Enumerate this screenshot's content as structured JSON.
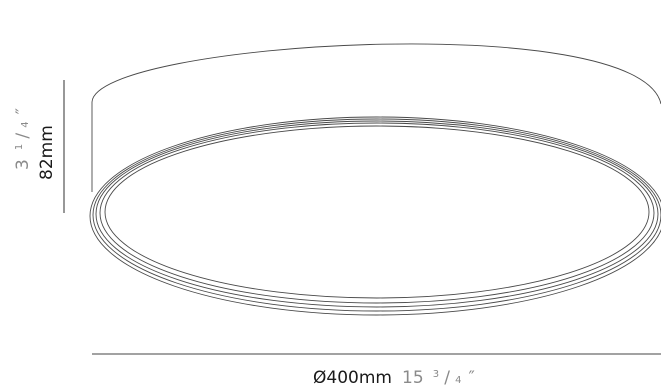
{
  "dimensions": {
    "height": {
      "metric": "82mm",
      "imperial_whole": "3",
      "imperial_numerator": "1",
      "imperial_slash": "/",
      "imperial_denominator": "4",
      "imperial_mark": "″"
    },
    "diameter": {
      "metric": "Ø400mm",
      "imperial_whole": "15",
      "imperial_numerator": "3",
      "imperial_slash": "/",
      "imperial_denominator": "4",
      "imperial_mark": "″"
    }
  },
  "colors": {
    "outline": "#4a4a4a",
    "metric_text": "#1a1a1a",
    "imperial_text": "#8a8a8a"
  }
}
